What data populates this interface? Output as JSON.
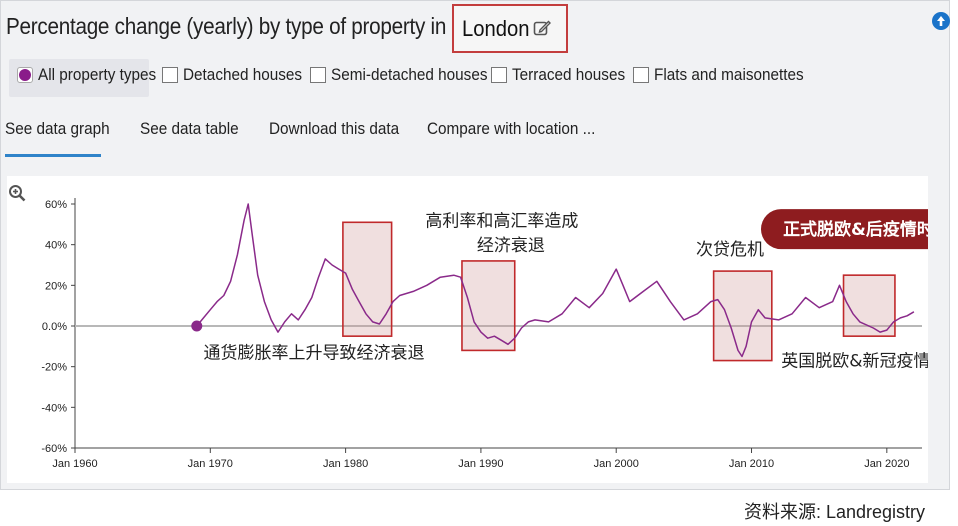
{
  "header": {
    "title": "Percentage change (yearly) by type of property in",
    "location": "London",
    "icons": {
      "edit": "edit-icon",
      "back_to_top": "arrow-up-circle-icon"
    }
  },
  "filters": [
    {
      "label": "All property types",
      "checked": true
    },
    {
      "label": "Detached houses",
      "checked": false
    },
    {
      "label": "Semi-detached houses",
      "checked": false
    },
    {
      "label": "Terraced houses",
      "checked": false
    },
    {
      "label": "Flats and maisonettes",
      "checked": false
    }
  ],
  "tabs": [
    {
      "label": "See data graph",
      "active": true
    },
    {
      "label": "See data table",
      "active": false
    },
    {
      "label": "Download this data",
      "active": false
    },
    {
      "label": "Compare with location ...",
      "active": false
    }
  ],
  "chart_data": {
    "type": "line",
    "xlim": [
      "1960-01",
      "2022-12"
    ],
    "ylim": [
      -60,
      60
    ],
    "x_ticks": [
      "Jan 1960",
      "Jan 1970",
      "Jan 1980",
      "Jan 1990",
      "Jan 2000",
      "Jan 2010",
      "Jan 2020"
    ],
    "y_ticks": [
      "60%",
      "40%",
      "20%",
      "0.0%",
      "-20%",
      "-40%",
      "-60%"
    ],
    "series": [
      {
        "color": "#8a2a8a",
        "points": [
          [
            1969.0,
            0
          ],
          [
            1969.5,
            4
          ],
          [
            1970.0,
            8
          ],
          [
            1970.5,
            12
          ],
          [
            1971.0,
            15
          ],
          [
            1971.5,
            22
          ],
          [
            1972.0,
            35
          ],
          [
            1972.5,
            52
          ],
          [
            1972.8,
            60
          ],
          [
            1973.1,
            45
          ],
          [
            1973.5,
            25
          ],
          [
            1974.0,
            12
          ],
          [
            1974.5,
            3
          ],
          [
            1975.0,
            -3
          ],
          [
            1975.5,
            2
          ],
          [
            1976.0,
            6
          ],
          [
            1976.5,
            3
          ],
          [
            1977.0,
            8
          ],
          [
            1977.5,
            14
          ],
          [
            1978.0,
            24
          ],
          [
            1978.5,
            33
          ],
          [
            1979.0,
            30
          ],
          [
            1979.5,
            28
          ],
          [
            1980.0,
            26
          ],
          [
            1980.5,
            18
          ],
          [
            1981.0,
            12
          ],
          [
            1981.5,
            6
          ],
          [
            1982.0,
            2
          ],
          [
            1982.5,
            1
          ],
          [
            1983.0,
            6
          ],
          [
            1983.5,
            12
          ],
          [
            1984.0,
            15
          ],
          [
            1985.0,
            17
          ],
          [
            1986.0,
            20
          ],
          [
            1987.0,
            24
          ],
          [
            1988.0,
            25
          ],
          [
            1988.5,
            24
          ],
          [
            1989.0,
            14
          ],
          [
            1989.5,
            2
          ],
          [
            1990.0,
            -3
          ],
          [
            1990.5,
            -6
          ],
          [
            1991.0,
            -5
          ],
          [
            1991.5,
            -7
          ],
          [
            1992.0,
            -9
          ],
          [
            1992.5,
            -6
          ],
          [
            1993.0,
            -1
          ],
          [
            1993.5,
            2
          ],
          [
            1994.0,
            3
          ],
          [
            1995.0,
            2
          ],
          [
            1996.0,
            6
          ],
          [
            1997.0,
            14
          ],
          [
            1998.0,
            9
          ],
          [
            1999.0,
            16
          ],
          [
            2000.0,
            28
          ],
          [
            2000.5,
            20
          ],
          [
            2001.0,
            12
          ],
          [
            2002.0,
            17
          ],
          [
            2003.0,
            22
          ],
          [
            2004.0,
            12
          ],
          [
            2005.0,
            3
          ],
          [
            2006.0,
            6
          ],
          [
            2007.0,
            12
          ],
          [
            2007.5,
            13
          ],
          [
            2008.0,
            8
          ],
          [
            2008.5,
            -1
          ],
          [
            2009.0,
            -12
          ],
          [
            2009.3,
            -15
          ],
          [
            2009.6,
            -10
          ],
          [
            2010.0,
            2
          ],
          [
            2010.5,
            8
          ],
          [
            2011.0,
            4
          ],
          [
            2012.0,
            3
          ],
          [
            2013.0,
            6
          ],
          [
            2014.0,
            14
          ],
          [
            2015.0,
            9
          ],
          [
            2016.0,
            12
          ],
          [
            2016.5,
            20
          ],
          [
            2017.0,
            12
          ],
          [
            2017.5,
            6
          ],
          [
            2018.0,
            2
          ],
          [
            2019.0,
            -1
          ],
          [
            2019.5,
            -3
          ],
          [
            2020.0,
            -2
          ],
          [
            2020.5,
            2
          ],
          [
            2021.0,
            4
          ],
          [
            2021.5,
            5
          ],
          [
            2022.0,
            7
          ]
        ],
        "start_marker": [
          1969.0,
          0
        ]
      }
    ]
  },
  "annotations": {
    "boxes": [
      {
        "x0": 1979.8,
        "x1": 1983.4,
        "y0": -5,
        "y1": 51
      },
      {
        "x0": 1988.6,
        "x1": 1992.5,
        "y0": -12,
        "y1": 32
      },
      {
        "x0": 2007.2,
        "x1": 2011.5,
        "y0": -17,
        "y1": 27
      },
      {
        "x0": 2016.8,
        "x1": 2020.6,
        "y0": -5,
        "y1": 25
      }
    ],
    "labels": [
      {
        "text": "通货膨胀率上升导致经济衰退",
        "x": 1969.5,
        "y": -16
      },
      {
        "text": "高利率和高汇率造成",
        "x": 1985.9,
        "y": 49
      },
      {
        "text": "经济衰退",
        "x": 1989.7,
        "y": 37
      },
      {
        "text": "次贷危机",
        "x": 2005.9,
        "y": 35
      },
      {
        "text": "英国脱欧&新冠疫情",
        "x": 2012.2,
        "y": -20
      }
    ],
    "badge": {
      "text": "正式脱欧&后疫情时代",
      "color": "#8e1c1f",
      "x": 2010.7,
      "y": 56
    }
  },
  "source": "资料来源: Landregistry"
}
